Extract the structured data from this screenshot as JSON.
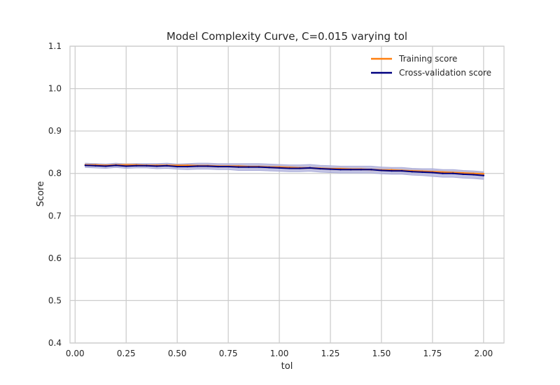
{
  "chart_data": {
    "type": "line",
    "title": "Model Complexity Curve, C=0.015 varying tol",
    "xlabel": "tol",
    "ylabel": "Score",
    "xlim": [
      -0.025,
      2.1
    ],
    "ylim": [
      0.4,
      1.1
    ],
    "xticks": [
      0.0,
      0.25,
      0.5,
      0.75,
      1.0,
      1.25,
      1.5,
      1.75,
      2.0
    ],
    "xtick_labels": [
      "0.00",
      "0.25",
      "0.50",
      "0.75",
      "1.00",
      "1.25",
      "1.50",
      "1.75",
      "2.00"
    ],
    "yticks": [
      0.4,
      0.5,
      0.6,
      0.7,
      0.8,
      0.9,
      1.0,
      1.1
    ],
    "ytick_labels": [
      "0.4",
      "0.5",
      "0.6",
      "0.7",
      "0.8",
      "0.9",
      "1.0",
      "1.1"
    ],
    "grid": true,
    "legend_position": "top-right",
    "x": [
      0.05,
      0.1,
      0.15,
      0.2,
      0.25,
      0.3,
      0.35,
      0.4,
      0.45,
      0.5,
      0.55,
      0.6,
      0.65,
      0.7,
      0.75,
      0.8,
      0.85,
      0.9,
      0.95,
      1.0,
      1.05,
      1.1,
      1.15,
      1.2,
      1.25,
      1.3,
      1.35,
      1.4,
      1.45,
      1.5,
      1.55,
      1.6,
      1.65,
      1.7,
      1.75,
      1.8,
      1.85,
      1.9,
      1.95,
      2.0
    ],
    "series": [
      {
        "name": "Training score",
        "color": "#ff7f0e",
        "band_color": "#f5c9a0",
        "values": [
          0.82,
          0.82,
          0.819,
          0.82,
          0.82,
          0.82,
          0.819,
          0.819,
          0.819,
          0.819,
          0.819,
          0.818,
          0.818,
          0.817,
          0.817,
          0.817,
          0.816,
          0.816,
          0.815,
          0.815,
          0.814,
          0.813,
          0.813,
          0.812,
          0.811,
          0.811,
          0.81,
          0.81,
          0.809,
          0.808,
          0.808,
          0.807,
          0.806,
          0.805,
          0.804,
          0.803,
          0.802,
          0.801,
          0.8,
          0.799
        ],
        "std": [
          0.003,
          0.003,
          0.003,
          0.003,
          0.003,
          0.003,
          0.003,
          0.003,
          0.003,
          0.003,
          0.003,
          0.003,
          0.003,
          0.003,
          0.003,
          0.003,
          0.003,
          0.003,
          0.003,
          0.003,
          0.003,
          0.003,
          0.003,
          0.003,
          0.003,
          0.003,
          0.003,
          0.003,
          0.003,
          0.003,
          0.003,
          0.003,
          0.003,
          0.003,
          0.003,
          0.003,
          0.003,
          0.003,
          0.003,
          0.003
        ]
      },
      {
        "name": "Cross-validation score",
        "color": "#000080",
        "band_color": "#a9abd8",
        "values": [
          0.819,
          0.818,
          0.817,
          0.819,
          0.817,
          0.818,
          0.818,
          0.817,
          0.818,
          0.816,
          0.816,
          0.817,
          0.817,
          0.816,
          0.816,
          0.815,
          0.815,
          0.815,
          0.814,
          0.813,
          0.812,
          0.812,
          0.813,
          0.811,
          0.81,
          0.809,
          0.809,
          0.809,
          0.809,
          0.807,
          0.806,
          0.806,
          0.804,
          0.803,
          0.802,
          0.8,
          0.8,
          0.798,
          0.797,
          0.795
        ],
        "std": [
          0.005,
          0.005,
          0.005,
          0.005,
          0.005,
          0.005,
          0.005,
          0.006,
          0.006,
          0.006,
          0.007,
          0.007,
          0.007,
          0.007,
          0.007,
          0.008,
          0.008,
          0.008,
          0.008,
          0.008,
          0.008,
          0.008,
          0.008,
          0.008,
          0.008,
          0.008,
          0.008,
          0.008,
          0.008,
          0.008,
          0.008,
          0.008,
          0.008,
          0.008,
          0.009,
          0.009,
          0.009,
          0.009,
          0.009,
          0.009
        ]
      }
    ]
  }
}
